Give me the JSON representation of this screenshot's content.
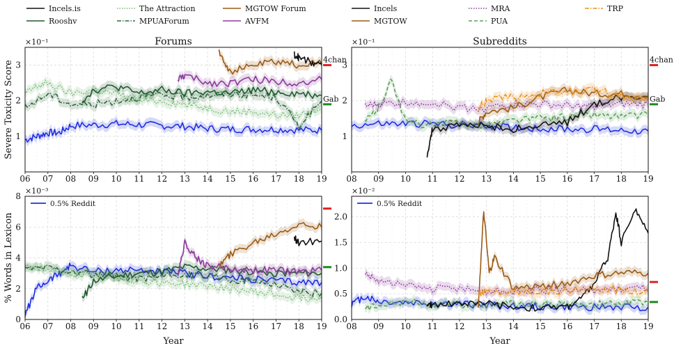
{
  "legend": [
    {
      "label": "Incels.is",
      "color": "#111111",
      "dash": "solid"
    },
    {
      "label": "The Attraction",
      "color": "#74b874",
      "dash": "dotted"
    },
    {
      "label": "MGTOW Forum",
      "color": "#9a5a12",
      "dash": "solid"
    },
    {
      "label": "Incels",
      "color": "#111111",
      "dash": "solid"
    },
    {
      "label": "MRA",
      "color": "#8a3a9a",
      "dash": "dotted"
    },
    {
      "label": "TRP",
      "color": "#e8901a",
      "dash": "dashdot"
    },
    {
      "label": "Rooshv",
      "color": "#1e5a2e",
      "dash": "solid"
    },
    {
      "label": "MPUAForum",
      "color": "#2a6a3a",
      "dash": "dashdot"
    },
    {
      "label": "AVFM",
      "color": "#8a3a9a",
      "dash": "solid"
    },
    {
      "label": "MGTOW",
      "color": "#9a5a12",
      "dash": "solid"
    },
    {
      "label": "PUA",
      "color": "#58a058",
      "dash": "dashed"
    }
  ],
  "xlabel": "Year",
  "chart_data": [
    {
      "id": "forums-tox",
      "type": "line",
      "title": "Forums",
      "ylabel": "Severe Toxicity Score",
      "multiplier": "×10⁻¹",
      "xticks": [
        "06",
        "07",
        "08",
        "09",
        "10",
        "11",
        "12",
        "13",
        "14",
        "15",
        "16",
        "17",
        "18",
        "19"
      ],
      "xlim": [
        2006,
        2019
      ],
      "yticks": [
        "1",
        "2",
        "3"
      ],
      "ylim": [
        0,
        3.5
      ],
      "refs": [
        {
          "label": "4chan",
          "value": 3.0,
          "color": "#e02020"
        },
        {
          "label": "Gab",
          "value": 1.9,
          "color": "#1a8a1a"
        }
      ],
      "series": [
        {
          "name": "0.5% Reddit",
          "color": "#1f2fe0",
          "dash": "solid",
          "band": true,
          "x": [
            2006,
            2006.5,
            2007,
            2007.5,
            2008,
            2009,
            2010,
            2011,
            2012,
            2013,
            2014,
            2015,
            2016,
            2017,
            2018,
            2019
          ],
          "y": [
            0.9,
            1.0,
            1.1,
            1.1,
            1.3,
            1.32,
            1.35,
            1.33,
            1.3,
            1.28,
            1.22,
            1.2,
            1.2,
            1.2,
            1.18,
            1.17
          ]
        },
        {
          "name": "The Attraction",
          "color": "#74b874",
          "dash": "dotted",
          "band": true,
          "x": [
            2006,
            2006.5,
            2007,
            2008,
            2009,
            2010,
            2011,
            2012,
            2013,
            2014,
            2015,
            2016,
            2017,
            2018,
            2019
          ],
          "y": [
            2.2,
            2.4,
            2.5,
            2.2,
            2.3,
            2.2,
            2.0,
            2.0,
            1.9,
            1.8,
            1.7,
            1.7,
            1.6,
            1.6,
            1.8
          ]
        },
        {
          "name": "MPUAForum",
          "color": "#2a6a3a",
          "dash": "dashdot",
          "band": true,
          "x": [
            2006,
            2007,
            2008,
            2009,
            2010,
            2011,
            2012,
            2013,
            2014,
            2015,
            2016,
            2017,
            2018,
            2019
          ],
          "y": [
            1.8,
            2.2,
            1.9,
            1.9,
            2.0,
            2.1,
            2.15,
            2.1,
            2.15,
            2.2,
            2.15,
            2.1,
            1.3,
            2.0
          ]
        },
        {
          "name": "Rooshv",
          "color": "#1e5a2e",
          "dash": "solid",
          "band": true,
          "x": [
            2008.5,
            2009,
            2010,
            2011,
            2012,
            2013,
            2014,
            2015,
            2016,
            2017,
            2018,
            2019
          ],
          "y": [
            2.0,
            2.3,
            2.4,
            2.2,
            2.3,
            2.2,
            2.25,
            2.2,
            2.3,
            2.25,
            2.2,
            2.15
          ]
        },
        {
          "name": "AVFM",
          "color": "#8a3a9a",
          "dash": "solid",
          "band": true,
          "x": [
            2012.7,
            2013,
            2014,
            2015,
            2016,
            2017,
            2018,
            2019
          ],
          "y": [
            2.6,
            2.7,
            2.5,
            2.5,
            2.6,
            2.55,
            2.5,
            2.6
          ]
        },
        {
          "name": "MGTOW Forum",
          "color": "#9a5a12",
          "dash": "solid",
          "band": true,
          "x": [
            2014.5,
            2015,
            2016,
            2017,
            2018,
            2019
          ],
          "y": [
            3.4,
            2.8,
            3.0,
            3.1,
            3.0,
            3.05
          ]
        },
        {
          "name": "Incels.is",
          "color": "#111111",
          "dash": "solid",
          "band": false,
          "x": [
            2017.8,
            2018,
            2018.5,
            2019
          ],
          "y": [
            3.3,
            3.2,
            3.1,
            3.0
          ]
        }
      ]
    },
    {
      "id": "subreddits-tox",
      "type": "line",
      "title": "Subreddits",
      "ylabel": "",
      "multiplier": "×10⁻¹",
      "xticks": [
        "08",
        "09",
        "10",
        "11",
        "12",
        "13",
        "14",
        "15",
        "16",
        "17",
        "18",
        "19"
      ],
      "xlim": [
        2008,
        2019
      ],
      "yticks": [
        "1",
        "2",
        "3"
      ],
      "ylim": [
        0,
        3.5
      ],
      "refs": [
        {
          "label": "4chan",
          "value": 3.0,
          "color": "#e02020"
        },
        {
          "label": "Gab",
          "value": 1.9,
          "color": "#1a8a1a"
        }
      ],
      "series": [
        {
          "name": "0.5% Reddit",
          "color": "#1f2fe0",
          "dash": "solid",
          "band": true,
          "x": [
            2008,
            2009,
            2010,
            2011,
            2012,
            2013,
            2014,
            2015,
            2016,
            2017,
            2018,
            2019
          ],
          "y": [
            1.3,
            1.35,
            1.35,
            1.35,
            1.32,
            1.3,
            1.25,
            1.22,
            1.2,
            1.2,
            1.18,
            1.15
          ]
        },
        {
          "name": "PUA",
          "color": "#58a058",
          "dash": "dashed",
          "band": true,
          "x": [
            2008.5,
            2009,
            2009.5,
            2010,
            2011,
            2012,
            2013,
            2014,
            2015,
            2016,
            2017,
            2018,
            2019
          ],
          "y": [
            1.4,
            1.8,
            2.6,
            1.4,
            1.3,
            1.4,
            1.3,
            1.45,
            1.5,
            1.55,
            1.6,
            1.55,
            1.6
          ]
        },
        {
          "name": "MRA",
          "color": "#8a3a9a",
          "dash": "dotted",
          "band": true,
          "x": [
            2008.5,
            2009,
            2010,
            2011,
            2012,
            2013,
            2014,
            2015,
            2016,
            2017,
            2018,
            2019
          ],
          "y": [
            1.85,
            1.9,
            1.95,
            1.95,
            1.8,
            1.8,
            1.9,
            1.9,
            1.85,
            1.85,
            1.9,
            1.9
          ]
        },
        {
          "name": "Incels",
          "color": "#111111",
          "dash": "solid",
          "band": true,
          "x": [
            2010.8,
            2011,
            2012,
            2013,
            2014,
            2015,
            2016,
            2017,
            2018,
            2019
          ],
          "y": [
            0.5,
            1.2,
            1.3,
            1.3,
            1.2,
            1.3,
            1.4,
            1.9,
            2.1,
            2.1
          ]
        },
        {
          "name": "MGTOW",
          "color": "#9a5a12",
          "dash": "solid",
          "band": true,
          "x": [
            2012.7,
            2013,
            2014,
            2015,
            2016,
            2017,
            2018,
            2019
          ],
          "y": [
            1.4,
            1.7,
            1.8,
            2.1,
            2.3,
            2.2,
            2.2,
            2.15
          ]
        },
        {
          "name": "TRP",
          "color": "#e8901a",
          "dash": "dashdot",
          "band": true,
          "x": [
            2012.7,
            2013,
            2014,
            2015,
            2016,
            2017,
            2018,
            2019
          ],
          "y": [
            1.8,
            2.0,
            2.1,
            2.2,
            2.25,
            2.3,
            2.15,
            2.05
          ]
        }
      ]
    },
    {
      "id": "forums-lex",
      "type": "line",
      "title": "",
      "ylabel": "% Words in Lexicon",
      "multiplier": "×10⁻³",
      "xticks": [
        "06",
        "07",
        "08",
        "09",
        "10",
        "11",
        "12",
        "13",
        "14",
        "15",
        "16",
        "17",
        "18",
        "19"
      ],
      "xlim": [
        2006,
        2019
      ],
      "yticks": [
        "0",
        "2",
        "4",
        "6",
        "8"
      ],
      "ylim": [
        0,
        8
      ],
      "refs": [
        {
          "label": "",
          "value": 7.2,
          "color": "#e02020"
        },
        {
          "label": "",
          "value": 3.4,
          "color": "#1a8a1a"
        }
      ],
      "legend_label": "0.5% Reddit",
      "series": [
        {
          "name": "0.5% Reddit",
          "color": "#1f2fe0",
          "dash": "solid",
          "band": true,
          "x": [
            2006,
            2006.5,
            2007,
            2007.5,
            2008,
            2009,
            2010,
            2011,
            2012,
            2013,
            2014,
            2015,
            2016,
            2017,
            2018,
            2019
          ],
          "y": [
            0.3,
            2.0,
            2.5,
            3.0,
            3.5,
            3.1,
            3.2,
            3.2,
            3.1,
            3.0,
            2.8,
            2.7,
            2.6,
            2.5,
            2.4,
            2.4
          ]
        },
        {
          "name": "The Attraction",
          "color": "#74b874",
          "dash": "dotted",
          "band": true,
          "x": [
            2006,
            2007,
            2008,
            2009,
            2010,
            2011,
            2012,
            2013,
            2014,
            2015,
            2016,
            2017,
            2018,
            2019
          ],
          "y": [
            3.5,
            3.2,
            3.0,
            2.8,
            2.7,
            2.5,
            2.4,
            2.3,
            2.2,
            2.0,
            1.8,
            1.6,
            1.4,
            1.4
          ]
        },
        {
          "name": "MPUAForum",
          "color": "#2a6a3a",
          "dash": "dashdot",
          "band": true,
          "x": [
            2006,
            2007,
            2008,
            2009,
            2010,
            2011,
            2012,
            2013,
            2014,
            2015,
            2016,
            2017,
            2018,
            2019
          ],
          "y": [
            3.3,
            3.4,
            3.1,
            2.9,
            2.8,
            2.7,
            2.8,
            2.9,
            2.8,
            2.6,
            2.5,
            2.3,
            1.8,
            1.7
          ]
        },
        {
          "name": "Rooshv",
          "color": "#1e5a2e",
          "dash": "solid",
          "band": true,
          "x": [
            2008.5,
            2009,
            2010,
            2011,
            2012,
            2013,
            2014,
            2015,
            2016,
            2017,
            2018,
            2019
          ],
          "y": [
            1.3,
            2.5,
            2.8,
            3.0,
            3.1,
            3.4,
            3.3,
            3.2,
            3.1,
            3.0,
            3.0,
            3.0
          ]
        },
        {
          "name": "AVFM",
          "color": "#8a3a9a",
          "dash": "solid",
          "band": true,
          "x": [
            2012.7,
            2013,
            2013.5,
            2014,
            2015,
            2016,
            2017,
            2018,
            2019
          ],
          "y": [
            3.0,
            5.0,
            4.0,
            3.5,
            3.3,
            3.2,
            3.2,
            3.1,
            3.2
          ]
        },
        {
          "name": "MGTOW Forum",
          "color": "#9a5a12",
          "dash": "solid",
          "band": true,
          "x": [
            2014.5,
            2015,
            2016,
            2017,
            2018,
            2019
          ],
          "y": [
            3.5,
            4.2,
            5.0,
            5.6,
            6.2,
            6.0
          ]
        },
        {
          "name": "Incels.is",
          "color": "#111111",
          "dash": "solid",
          "band": false,
          "x": [
            2017.8,
            2018,
            2019
          ],
          "y": [
            5.3,
            5.0,
            5.1
          ]
        }
      ]
    },
    {
      "id": "subreddits-lex",
      "type": "line",
      "title": "",
      "ylabel": "",
      "multiplier": "×10⁻²",
      "xticks": [
        "08",
        "09",
        "10",
        "11",
        "12",
        "13",
        "14",
        "15",
        "16",
        "17",
        "18",
        "19"
      ],
      "xlim": [
        2008,
        2019
      ],
      "yticks": [
        "0.0",
        "0.5",
        "1.0",
        "1.5",
        "2.0"
      ],
      "ylim": [
        0,
        2.4
      ],
      "refs": [
        {
          "label": "",
          "value": 0.73,
          "color": "#e02020"
        },
        {
          "label": "",
          "value": 0.34,
          "color": "#1a8a1a"
        }
      ],
      "legend_label": "0.5% Reddit",
      "series": [
        {
          "name": "0.5% Reddit",
          "color": "#1f2fe0",
          "dash": "solid",
          "band": true,
          "x": [
            2008,
            2008.5,
            2009,
            2010,
            2011,
            2012,
            2013,
            2014,
            2015,
            2016,
            2017,
            2018,
            2019
          ],
          "y": [
            0.3,
            0.45,
            0.35,
            0.33,
            0.32,
            0.3,
            0.28,
            0.26,
            0.25,
            0.24,
            0.24,
            0.24,
            0.24
          ]
        },
        {
          "name": "MRA",
          "color": "#8a3a9a",
          "dash": "dotted",
          "band": true,
          "x": [
            2008.5,
            2009,
            2010,
            2011,
            2012,
            2013,
            2014,
            2015,
            2016,
            2017,
            2018,
            2019
          ],
          "y": [
            0.9,
            0.75,
            0.65,
            0.6,
            0.6,
            0.55,
            0.55,
            0.57,
            0.58,
            0.58,
            0.6,
            0.62
          ]
        },
        {
          "name": "PUA",
          "color": "#58a058",
          "dash": "dashed",
          "band": true,
          "x": [
            2008.5,
            2009,
            2010,
            2011,
            2012,
            2013,
            2014,
            2015,
            2016,
            2017,
            2018,
            2019
          ],
          "y": [
            0.2,
            0.3,
            0.35,
            0.3,
            0.28,
            0.3,
            0.3,
            0.3,
            0.3,
            0.3,
            0.32,
            0.34
          ]
        },
        {
          "name": "Incels",
          "color": "#111111",
          "dash": "solid",
          "band": false,
          "x": [
            2010.8,
            2011,
            2012,
            2013,
            2014,
            2015,
            2016,
            2016.5,
            2017,
            2017.5,
            2017.8,
            2018,
            2018.5,
            2019
          ],
          "y": [
            0.25,
            0.3,
            0.32,
            0.3,
            0.25,
            0.22,
            0.25,
            0.4,
            0.7,
            1.2,
            2.1,
            1.5,
            2.15,
            1.68
          ]
        },
        {
          "name": "MGTOW",
          "color": "#9a5a12",
          "dash": "solid",
          "band": true,
          "x": [
            2012.7,
            2012.9,
            2013.1,
            2013.3,
            2014,
            2015,
            2016,
            2017,
            2018,
            2019
          ],
          "y": [
            0.3,
            2.1,
            0.9,
            1.2,
            0.6,
            0.65,
            0.7,
            0.85,
            0.9,
            0.9
          ]
        },
        {
          "name": "TRP",
          "color": "#e8901a",
          "dash": "dashdot",
          "band": true,
          "x": [
            2012.7,
            2013,
            2014,
            2015,
            2016,
            2017,
            2018,
            2019
          ],
          "y": [
            0.5,
            0.55,
            0.55,
            0.56,
            0.56,
            0.57,
            0.58,
            0.55
          ]
        }
      ]
    }
  ]
}
